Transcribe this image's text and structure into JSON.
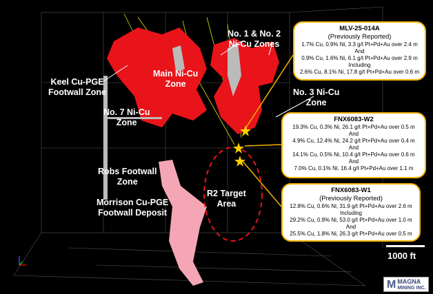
{
  "labels": {
    "zones_1_2": [
      "No. 1 & No. 2",
      "Ni-Cu Zones"
    ],
    "keel": [
      "Keel Cu-PGE",
      "Footwall Zone"
    ],
    "main": [
      "Main Ni-Cu",
      "Zone"
    ],
    "no7": [
      "No. 7 Ni-Cu",
      "Zone"
    ],
    "no3": [
      "No. 3 Ni-Cu",
      "Zone"
    ],
    "robs": [
      "Robs Footwall",
      "Zone"
    ],
    "r2": [
      "R2 Target",
      "Area"
    ],
    "morrison": [
      "Morrison Cu-PGE",
      "Footwall Deposit"
    ]
  },
  "callouts": [
    {
      "title": "MLV-25-014A",
      "subtitle": "(Previously Reported)",
      "lines": [
        "1.7% Cu, 0.9% Ni, 3.3 g/t Pt+Pd+Au over 2.4 m",
        "And",
        "0.9% Cu, 1.6% Ni, 6.1 g/t Pt+Pd+Au over 2.9 m",
        "Including",
        "2.6% Cu, 8.1% Ni, 17.8 g/t Pt+Pd+Au over 0.6 m"
      ]
    },
    {
      "title": "FNX6083-W2",
      "lines": [
        "19.3% Cu, 0.3% Ni, 26.1 g/t Pt+Pd+Au over 0.5 m",
        "And",
        "4.9% Cu, 12.4% Ni, 24.2 g/t Pt+Pd+Au over 0.4 m",
        "And",
        "14.1% Cu, 0.5% Ni, 10.4 g/t Pt+Pd+Au over 0.6 m",
        "And",
        "7.0% Cu, 0.1% Ni, 16.4 g/t Pt+Pd+Au over 1.1 m"
      ]
    },
    {
      "title": "FNX6083-W1",
      "subtitle": "(Previously Reported)",
      "lines": [
        "12.8% Cu, 0.6% Ni, 31.9 g/t Pt+Pd+Au over 2.6 m",
        "Including",
        "29.2% Cu, 0.9% Ni, 53.0 g/t Pt+Pd+Au over 1.0 m",
        "And",
        "25.5% Cu, 1.8% Ni, 26.3 g/t Pt+Pd+Au over 0.5 m"
      ]
    }
  ],
  "scale_bar": "1000 ft",
  "logo": {
    "mark": "M",
    "line1": "MAGNA",
    "line2": "MINING INC."
  },
  "colors": {
    "ni_cu_zones": "#e8141a",
    "footwall": "#f4a6b4",
    "callout_border": "#f5b400",
    "target_outline": "#e8141a",
    "star": "#ffd200"
  }
}
